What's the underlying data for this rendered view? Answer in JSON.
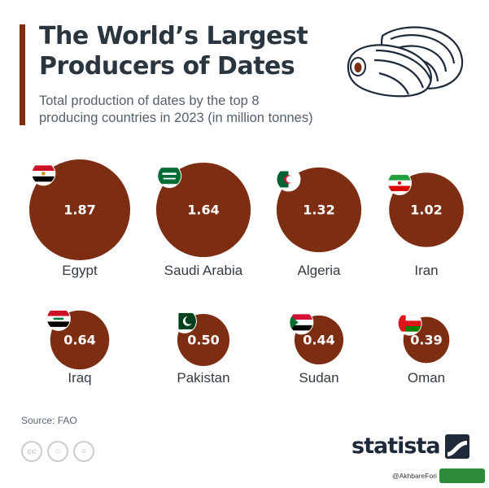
{
  "header": {
    "title_line1": "The World’s Largest",
    "title_line2": "Producers of Dates",
    "subtitle_line1": "Total production of dates by the top 8",
    "subtitle_line2": "producing countries in 2023 (in million tonnes)"
  },
  "chart_data": {
    "type": "bubble",
    "title": "The World’s Largest Producers of Dates",
    "subtitle": "Total production of dates by the top 8 producing countries in 2023 (in million tonnes)",
    "categories": [
      "Egypt",
      "Saudi Arabia",
      "Algeria",
      "Iran",
      "Iraq",
      "Pakistan",
      "Sudan",
      "Oman"
    ],
    "value_labels": [
      "1.87",
      "1.64",
      "1.32",
      "1.02",
      "0.64",
      "0.50",
      "0.44",
      "0.39"
    ],
    "values": [
      1.87,
      1.64,
      1.32,
      1.02,
      0.64,
      0.5,
      0.44,
      0.39
    ],
    "unit": "million tonnes",
    "year": 2023,
    "bubble_color": "#7d2e12"
  },
  "footer": {
    "source": "Source: FAO",
    "brand": "statista",
    "handle": "@AkhbareFori"
  },
  "colors": {
    "accent": "#7d2e12",
    "title": "#2b3540",
    "subtitle": "#55606b"
  },
  "icons": [
    "dates-fruit-illustration",
    "flag-icon",
    "cc-icon",
    "by-icon",
    "nd-icon",
    "statista-logo-icon"
  ]
}
